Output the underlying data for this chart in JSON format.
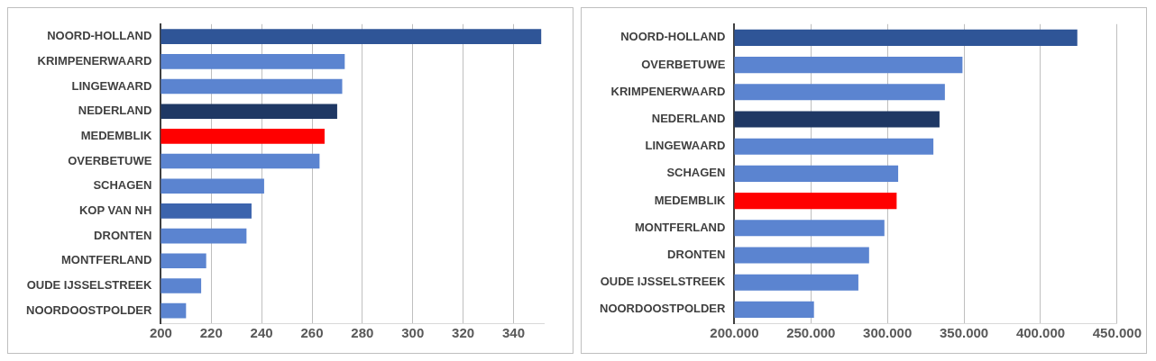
{
  "chart_data": [
    {
      "type": "bar",
      "orientation": "horizontal",
      "categories": [
        "NOORD-HOLLAND",
        "KRIMPENERWAARD",
        "LINGEWAARD",
        "NEDERLAND",
        "MEDEMBLIK",
        "OVERBETUWE",
        "SCHAGEN",
        "KOP VAN NH",
        "DRONTEN",
        "MONTFERLAND",
        "OUDE IJSSELSTREEK",
        "NOORDOOSTPOLDER"
      ],
      "values": [
        351,
        273,
        272,
        270,
        265,
        263,
        241,
        236,
        234,
        218,
        216,
        210
      ],
      "colors": [
        "#2f5597",
        "#5b84d0",
        "#5b84d0",
        "#1f3864",
        "#ff0000",
        "#5b84d0",
        "#5b84d0",
        "#3c64ad",
        "#5b84d0",
        "#5b84d0",
        "#5b84d0",
        "#5b84d0"
      ],
      "xlim": [
        200,
        352
      ],
      "xticks": [
        200,
        220,
        240,
        260,
        280,
        300,
        320,
        340
      ],
      "grid": "x",
      "legend": false
    },
    {
      "type": "bar",
      "orientation": "horizontal",
      "categories": [
        "NOORD-HOLLAND",
        "OVERBETUWE",
        "KRIMPENERWAARD",
        "NEDERLAND",
        "LINGEWAARD",
        "SCHAGEN",
        "MEDEMBLIK",
        "MONTFERLAND",
        "DRONTEN",
        "OUDE IJSSELSTREEK",
        "NOORDOOSTPOLDER"
      ],
      "values": [
        424000,
        349000,
        337500,
        334000,
        330000,
        307000,
        306000,
        298000,
        288000,
        281000,
        252000
      ],
      "colors": [
        "#2f5597",
        "#5b84d0",
        "#5b84d0",
        "#1f3864",
        "#5b84d0",
        "#5b84d0",
        "#ff0000",
        "#5b84d0",
        "#5b84d0",
        "#5b84d0",
        "#5b84d0"
      ],
      "xlim": [
        200000,
        450000
      ],
      "xticks": [
        {
          "value": 200000,
          "label": "200.000"
        },
        {
          "value": 250000,
          "label": "250.000"
        },
        {
          "value": 300000,
          "label": "300.000"
        },
        {
          "value": 350000,
          "label": "350.000"
        },
        {
          "value": 400000,
          "label": "400.000"
        },
        {
          "value": 450000,
          "label": "450.000"
        }
      ],
      "grid": "x",
      "legend": false
    }
  ]
}
